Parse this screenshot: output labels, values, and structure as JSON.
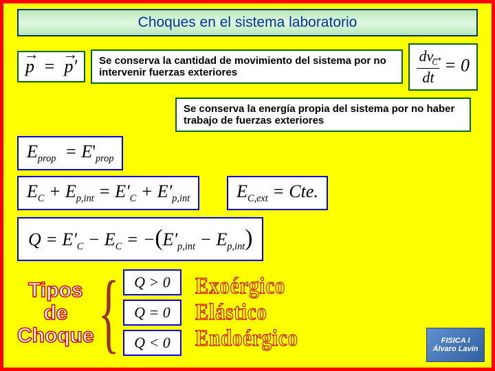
{
  "title": "Choques en el sistema laboratorio",
  "momentum_eq_left": "p",
  "momentum_eq_right": "p'",
  "momentum_expl": "Se conserva la cantidad de movimiento del sistema por no intervenir fuerzas exteriores",
  "dvc_num": "dv",
  "dvc_sub": "C",
  "dvc_den": "dt",
  "dvc_rhs": "= 0",
  "energy_expl": "Se conserva la energía propia del sistema por no haber trabajo de fuerzas exteriores",
  "eprop_eq": "E",
  "eprop_sub": "prop",
  "ec_ext_eq": "E",
  "ec_ext_sub": "C,ext",
  "cte": "Cte.",
  "q_label": "Q",
  "tipos": {
    "l1": "Tipos",
    "l2": "de",
    "l3": "Choque"
  },
  "q_gt": "Q > 0",
  "q_eq": "Q = 0",
  "q_lt": "Q < 0",
  "type_exo": "Exoérgico",
  "type_ela": "Elástico",
  "type_end": "Endoérgico",
  "logo1": "FISICA I",
  "logo2": "Álvaro Lavín",
  "colors": {
    "border_red": "#ff0000",
    "bg_yellow": "#ffff00",
    "green": "#006600",
    "blue": "#0000ff",
    "title_blue": "#003399"
  }
}
